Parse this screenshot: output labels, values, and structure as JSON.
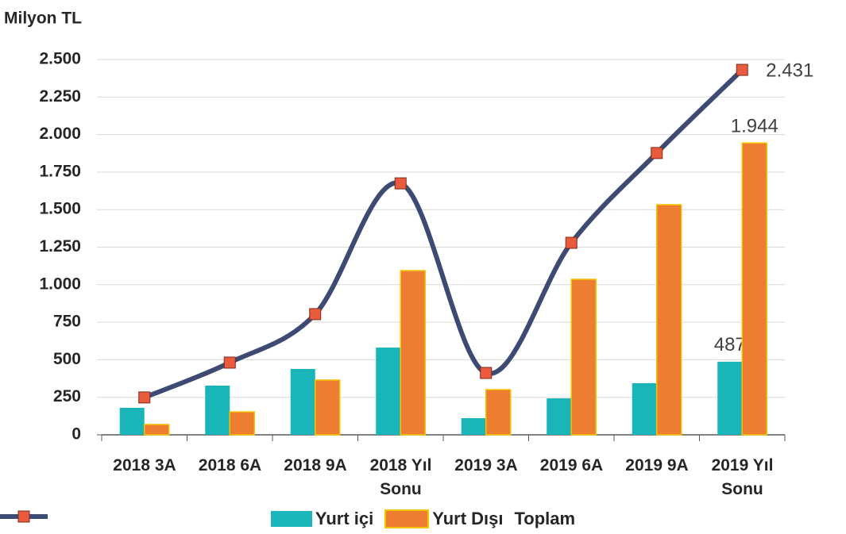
{
  "chart_data": {
    "type": "bar_line",
    "y_axis_title": "Milyon TL",
    "categories": [
      "2018 3A",
      "2018 6A",
      "2018 9A",
      "2018 Yıl Sonu",
      "2019 3A",
      "2019 6A",
      "2019 9A",
      "2019 Yıl Sonu"
    ],
    "series": [
      {
        "name": "Yurt içi",
        "type": "bar",
        "color": "#19b5b8",
        "values": [
          180,
          328,
          439,
          581,
          111,
          243,
          344,
          487
        ],
        "value_labels": [
          null,
          null,
          null,
          null,
          null,
          null,
          null,
          "487"
        ]
      },
      {
        "name": "Yurt Dışı",
        "type": "bar",
        "color": "#ed7d31",
        "edge_color": "#f5c400",
        "values": [
          69,
          153,
          365,
          1094,
          301,
          1036,
          1533,
          1944
        ],
        "value_labels": [
          null,
          null,
          null,
          null,
          null,
          null,
          null,
          "1.944"
        ]
      },
      {
        "name": "Toplam",
        "type": "line",
        "color": "#3d4a73",
        "marker_color": "#ea5a3c",
        "values": [
          249,
          481,
          804,
          1675,
          412,
          1279,
          1877,
          2431
        ],
        "value_labels": [
          null,
          null,
          null,
          null,
          null,
          null,
          null,
          "2.431"
        ]
      }
    ],
    "ylim": [
      0,
      2500
    ],
    "yticks": [
      0,
      250,
      500,
      750,
      {
        "value": 1000,
        "label": "1.000"
      },
      {
        "value": 1250,
        "label": "1.250"
      },
      {
        "value": 1500,
        "label": "1.500"
      },
      {
        "value": 1750,
        "label": "1.750"
      },
      {
        "value": 2000,
        "label": "2.000"
      },
      {
        "value": 2250,
        "label": "2.250"
      },
      {
        "value": 2500,
        "label": "2.500"
      }
    ],
    "grid": true,
    "legend": "bottom"
  }
}
